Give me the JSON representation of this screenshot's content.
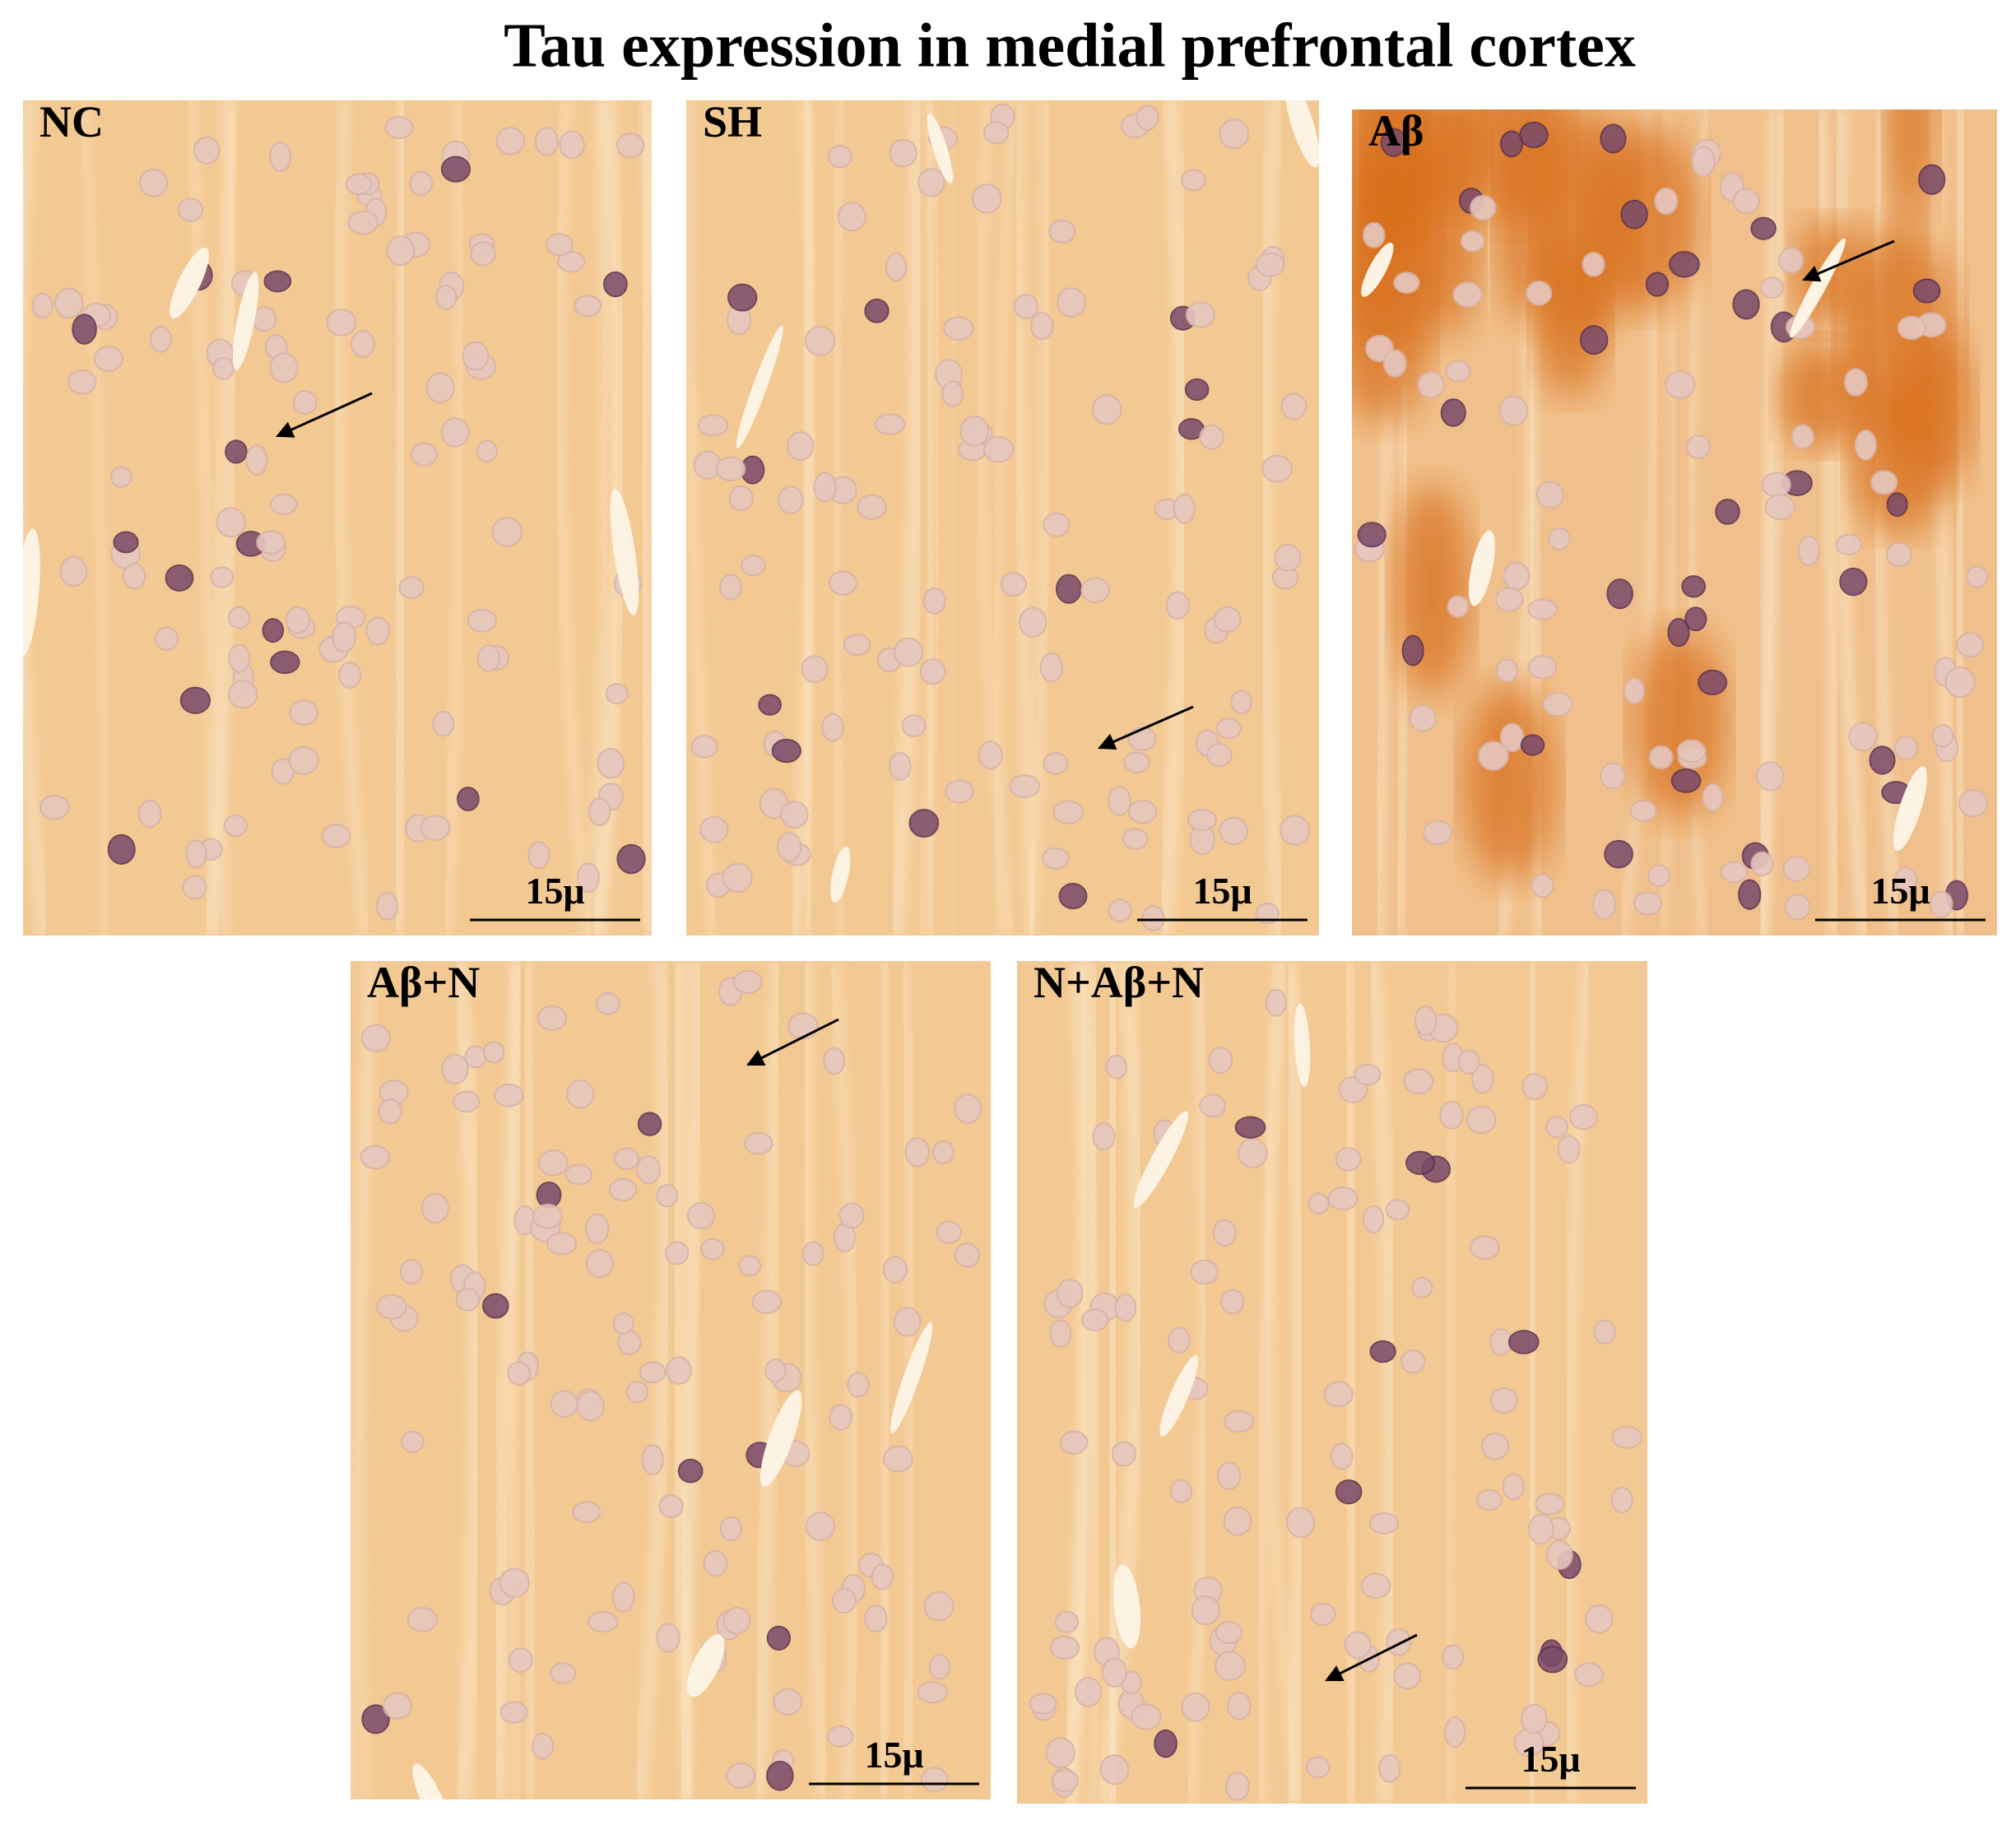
{
  "title": "Tau expression in medial prefrontal cortex",
  "panels": [
    {
      "label": "NC",
      "scale_label": "15μ"
    },
    {
      "label": "SH",
      "scale_label": "15μ"
    },
    {
      "label": "Aβ",
      "scale_label": "15μ"
    },
    {
      "label": "Aβ+N",
      "scale_label": "15μ"
    },
    {
      "label": "N+Aβ+N",
      "scale_label": "15μ"
    }
  ]
}
